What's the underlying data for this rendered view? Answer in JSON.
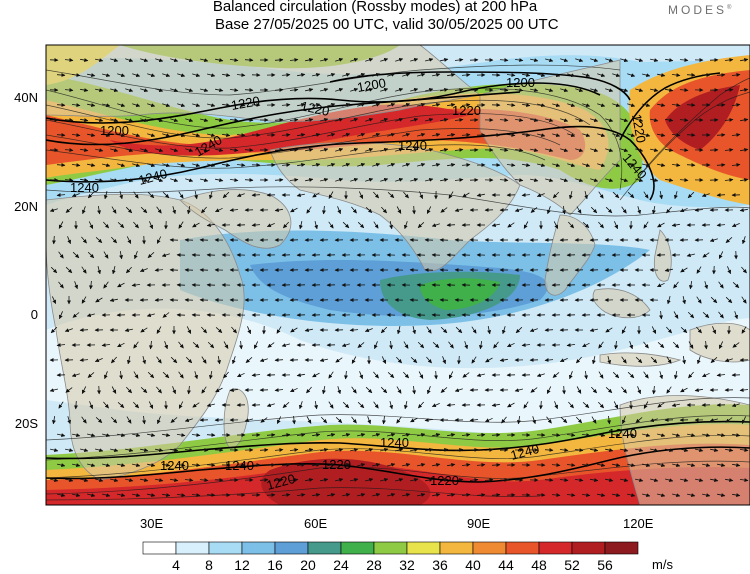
{
  "header": {
    "title": "Balanced circulation (Rossby modes) at 200 hPa",
    "subtitle": "Base 27/05/2025 00 UTC, valid 30/05/2025 00 UTC",
    "brand": "MODES",
    "brand_mark": "®"
  },
  "map": {
    "projection": "cylindrical equidistant",
    "lon_range": [
      "10E",
      "140E"
    ],
    "lat_range": [
      "35S",
      "50N"
    ],
    "lat_labels": [
      "40N",
      "20N",
      "0",
      "20S"
    ],
    "lon_labels": [
      "30E",
      "60E",
      "90E",
      "120E"
    ],
    "contour_labels": [
      "1200",
      "1200",
      "1200",
      "1220",
      "1220",
      "1220",
      "1220",
      "1240",
      "1240",
      "1240",
      "1240",
      "1240",
      "1240",
      "1240",
      "1240",
      "1240",
      "1240",
      "1220",
      "1220",
      "1220"
    ],
    "contour_label_values": [
      1200,
      1220,
      1240
    ],
    "wind_vectors": "streamline arrows"
  },
  "colorbar": {
    "units": "m/s",
    "tick_labels": [
      "4",
      "8",
      "12",
      "16",
      "20",
      "24",
      "28",
      "32",
      "36",
      "40",
      "44",
      "48",
      "52",
      "56"
    ],
    "colors": [
      "#ffffff",
      "#d8f0fb",
      "#a8dcf4",
      "#7cc0e8",
      "#5d9fd6",
      "#459a8c",
      "#3fb04a",
      "#8fca45",
      "#e8e34a",
      "#f3b63e",
      "#ef8a32",
      "#e8552a",
      "#d4282a",
      "#b01e22",
      "#8c1a1e"
    ]
  }
}
